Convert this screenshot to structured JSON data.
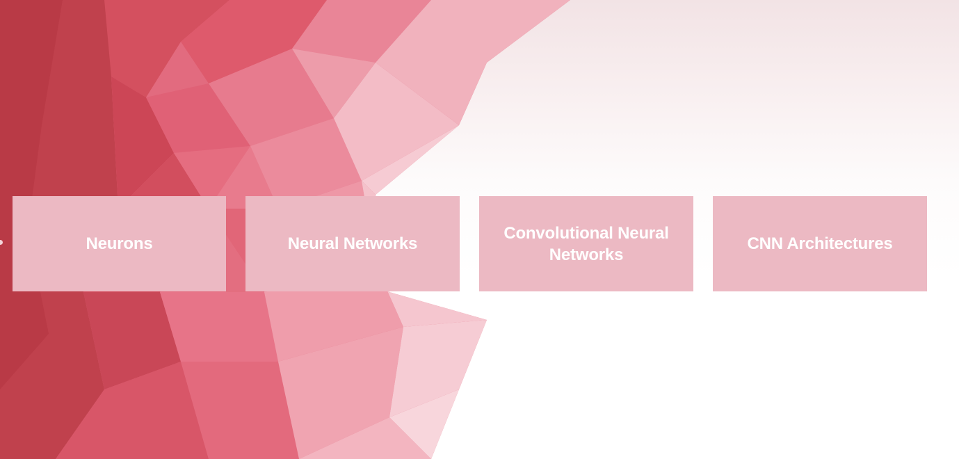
{
  "tiles": [
    {
      "label": "Neurons"
    },
    {
      "label": "Neural Networks"
    },
    {
      "label": "Convolutional Neural Networks"
    },
    {
      "label": "CNN Architectures"
    }
  ],
  "colors": {
    "tile_background": "#ecb9c3",
    "tile_text": "#ffffff",
    "accent_red": "#c8394a",
    "accent_pink": "#e8697c"
  }
}
